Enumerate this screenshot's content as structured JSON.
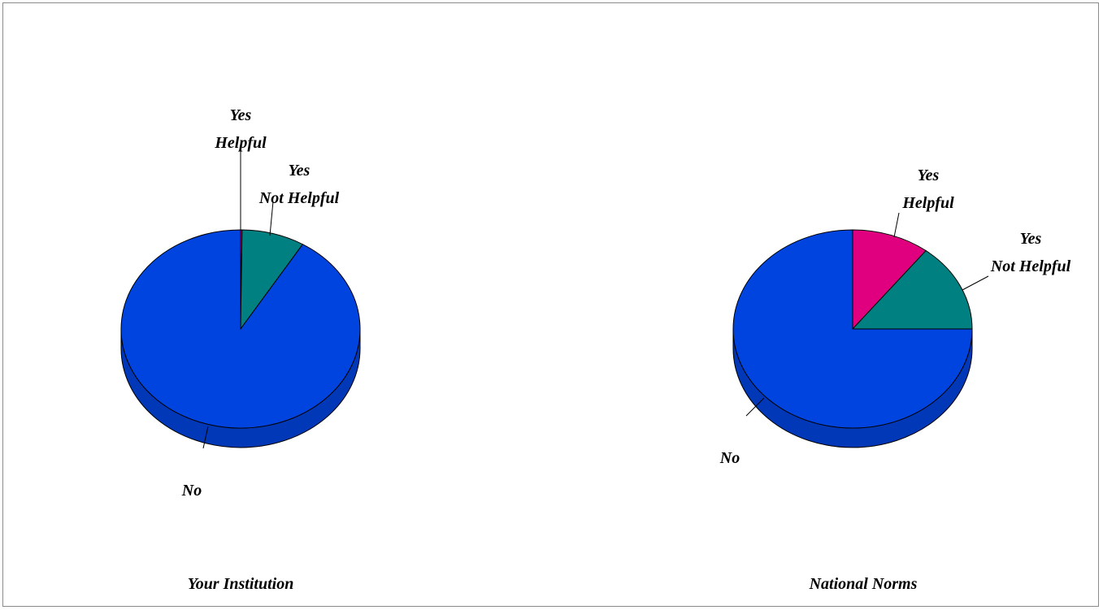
{
  "chart_data": [
    {
      "type": "pie",
      "caption": "Your Institution",
      "style": "3d",
      "slices": [
        {
          "label_lines": [
            "Yes",
            "Helpful"
          ],
          "value": 0.2,
          "color": "#e0007f"
        },
        {
          "label_lines": [
            "Yes",
            "Not Helpful"
          ],
          "value": 8.5,
          "color": "#008080"
        },
        {
          "label_lines": [
            "No"
          ],
          "value": 91.3,
          "color": "#0044e0"
        }
      ]
    },
    {
      "type": "pie",
      "caption": "National Norms",
      "style": "3d",
      "slices": [
        {
          "label_lines": [
            "Yes",
            "Helpful"
          ],
          "value": 10.5,
          "color": "#e0007f"
        },
        {
          "label_lines": [
            "Yes",
            "Not Helpful"
          ],
          "value": 14.5,
          "color": "#008080"
        },
        {
          "label_lines": [
            "No"
          ],
          "value": 75.0,
          "color": "#0044e0"
        }
      ]
    }
  ]
}
